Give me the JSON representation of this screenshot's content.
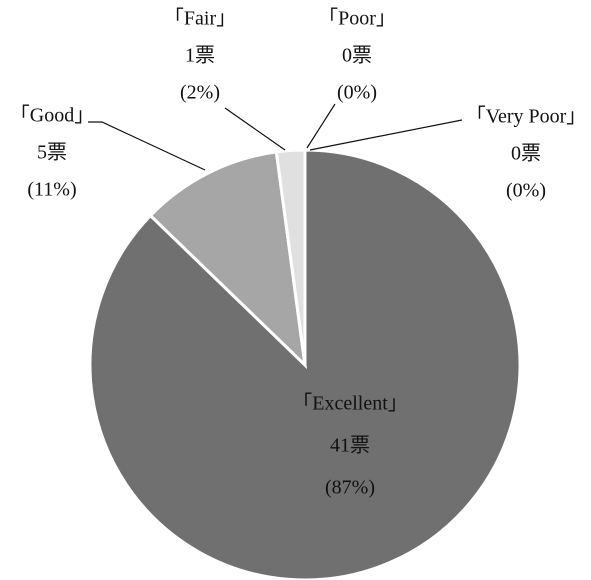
{
  "chart_data": {
    "type": "pie",
    "categories": [
      "「Excellent」",
      "「Good」",
      "「Fair」",
      "「Poor」",
      "「Very Poor」"
    ],
    "values": [
      41,
      5,
      1,
      0,
      0
    ],
    "value_labels": [
      "41票",
      "5票",
      "1票",
      "0票",
      "0票"
    ],
    "percents": [
      87,
      11,
      2,
      0,
      0
    ],
    "percent_labels": [
      "(87%)",
      "(11%)",
      "(2%)",
      "(0%)",
      "(0%)"
    ],
    "colors": [
      "#707070",
      "#a6a6a6",
      "#e0e0e0",
      "#f2f2f2",
      "#f2f2f2"
    ]
  }
}
